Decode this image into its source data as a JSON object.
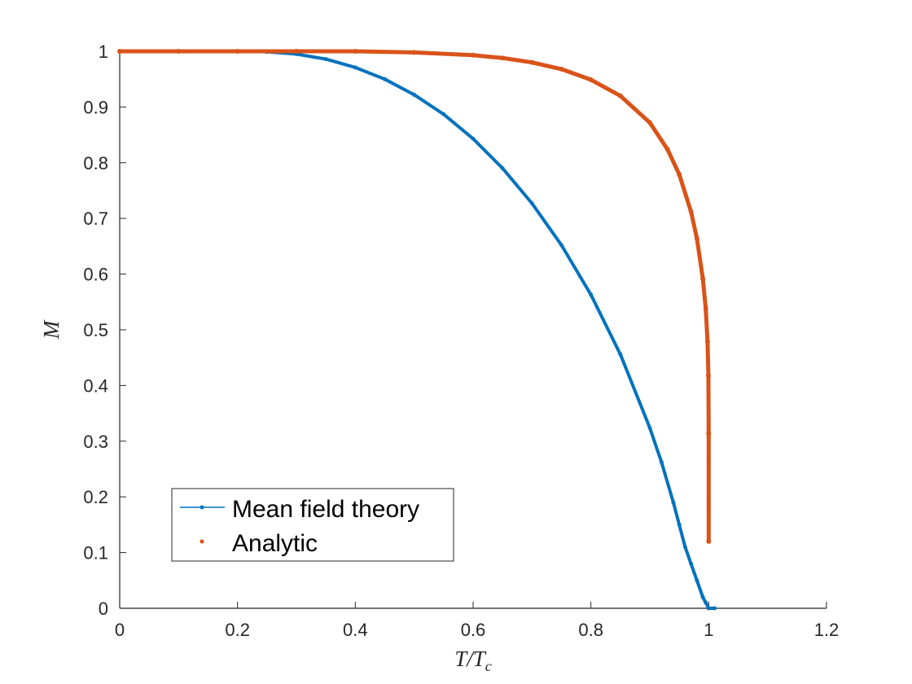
{
  "chart_data": {
    "type": "line",
    "title": "",
    "xlabel": "T/T_c",
    "ylabel": "M",
    "xlim": [
      0,
      1.2
    ],
    "ylim": [
      0,
      1
    ],
    "x_ticks": [
      "0",
      "0.2",
      "0.4",
      "0.6",
      "0.8",
      "1",
      "1.2"
    ],
    "y_ticks": [
      "0",
      "0.1",
      "0.2",
      "0.3",
      "0.4",
      "0.5",
      "0.6",
      "0.7",
      "0.8",
      "0.9",
      "1"
    ],
    "grid": false,
    "legend_position": "bottom-left",
    "series": [
      {
        "name": "Mean field theory",
        "style": "line with dot markers",
        "color": "#0072BD",
        "x": [
          0,
          0.1,
          0.2,
          0.25,
          0.3,
          0.35,
          0.4,
          0.45,
          0.5,
          0.55,
          0.6,
          0.65,
          0.7,
          0.75,
          0.8,
          0.85,
          0.9,
          0.92,
          0.94,
          0.95,
          0.96,
          0.97,
          0.98,
          0.99,
          0.995,
          1.0,
          1.01
        ],
        "y": [
          1.0,
          1.0,
          1.0,
          0.999,
          0.995,
          0.986,
          0.971,
          0.95,
          0.922,
          0.887,
          0.843,
          0.79,
          0.727,
          0.652,
          0.563,
          0.456,
          0.324,
          0.262,
          0.19,
          0.15,
          0.11,
          0.08,
          0.05,
          0.02,
          0.01,
          0.0,
          0.0
        ]
      },
      {
        "name": "Analytic",
        "style": "dot markers",
        "color": "#D95319",
        "x": [
          0,
          0.1,
          0.2,
          0.3,
          0.4,
          0.5,
          0.6,
          0.65,
          0.7,
          0.75,
          0.8,
          0.85,
          0.9,
          0.93,
          0.95,
          0.97,
          0.98,
          0.99,
          0.995,
          0.998,
          0.9995,
          0.99995,
          1.0
        ],
        "y": [
          1.0,
          1.0,
          1.0,
          1.0,
          1.0,
          0.998,
          0.993,
          0.988,
          0.98,
          0.968,
          0.949,
          0.92,
          0.872,
          0.824,
          0.779,
          0.712,
          0.664,
          0.592,
          0.538,
          0.479,
          0.418,
          0.314,
          0.12
        ]
      }
    ]
  }
}
